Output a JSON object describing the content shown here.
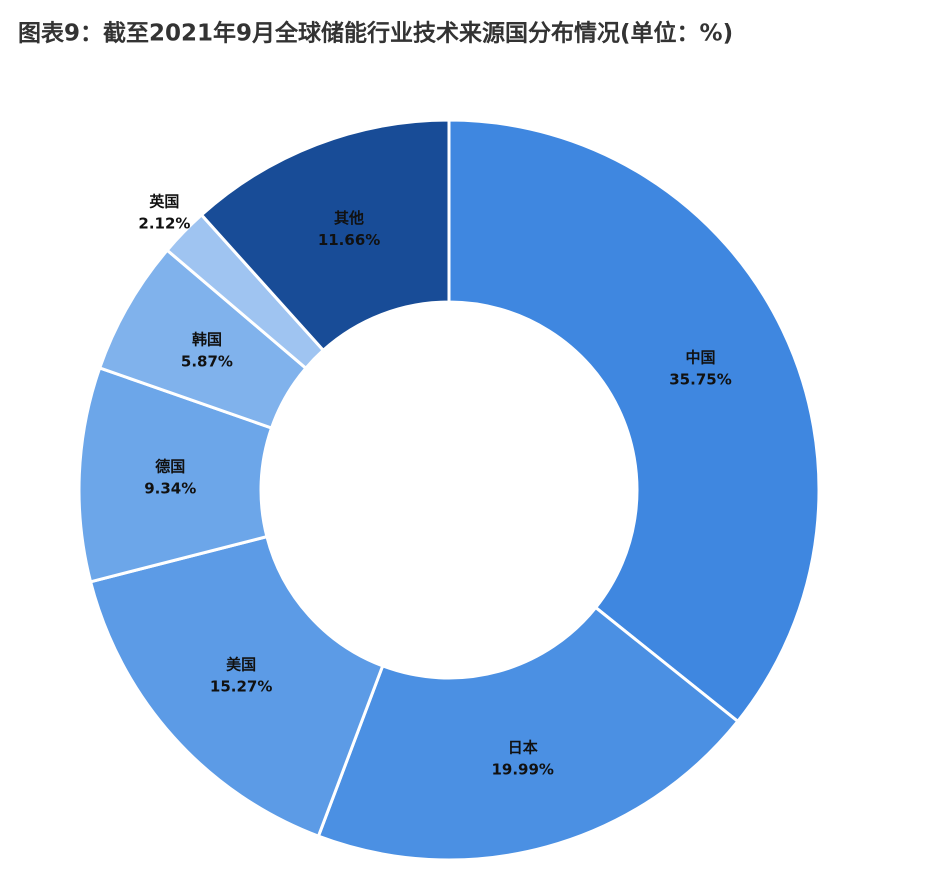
{
  "chart_data": {
    "type": "pie",
    "title": "图表9：截至2021年9月全球储能行业技术来源国分布情况(单位：%)",
    "categories": [
      "中国",
      "日本",
      "美国",
      "德国",
      "韩国",
      "英国",
      "其他"
    ],
    "values": [
      35.75,
      19.99,
      15.27,
      9.34,
      5.87,
      2.12,
      11.66
    ],
    "value_labels": [
      "35.75%",
      "19.99%",
      "15.27%",
      "9.34%",
      "5.87%",
      "2.12%",
      "11.66%"
    ],
    "colors": [
      "#3f87e0",
      "#4b90e3",
      "#5c9be6",
      "#6ca6e9",
      "#80b2ec",
      "#9fc4f1",
      "#184c97"
    ]
  }
}
